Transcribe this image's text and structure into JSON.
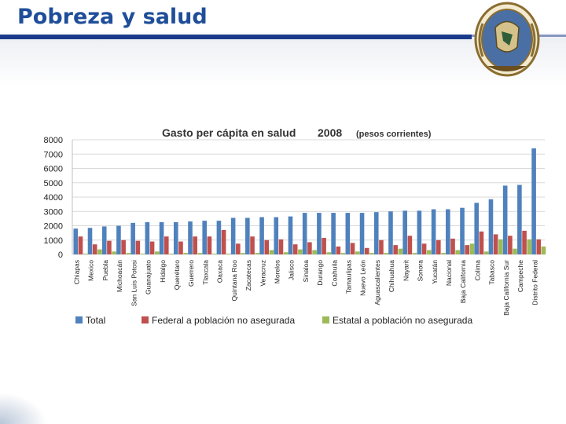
{
  "slide": {
    "title": "Pobreza y salud"
  },
  "colors": {
    "title": "#1f4e99",
    "bar_total": "#4f81bd",
    "bar_federal": "#c0504d",
    "bar_estatal": "#9bbb59",
    "grid": "#d9d9d9"
  },
  "chart_data": {
    "type": "bar",
    "title": "Gasto per cápita en salud",
    "title_year": "2008",
    "subtitle": "(pesos corrientes)",
    "xlabel": "",
    "ylabel": "",
    "ylim": [
      0,
      8000
    ],
    "yticks": [
      0,
      1000,
      2000,
      3000,
      4000,
      5000,
      6000,
      7000,
      8000
    ],
    "grid": true,
    "legend_position": "bottom",
    "categories": [
      "Chiapas",
      "Mexico",
      "Puebla",
      "Michoacán",
      "San Luis Potosi",
      "Guanajuato",
      "Hidalgo",
      "Querétaro",
      "Guerrero",
      "Tlaxcala",
      "Oaxaca",
      "Quintana Roo",
      "Zacatecas",
      "Veracruz",
      "Morelos",
      "Jalisco",
      "Sinaloa",
      "Durango",
      "Coahuila",
      "Tamaulipas",
      "Nuevo León",
      "Aguascalientes",
      "Chihuahua",
      "Nayarit",
      "Sonora",
      "Yucatán",
      "Nacional",
      "Baja California",
      "Colima",
      "Tabasco",
      "Baja California Sur",
      "Campeche",
      "Distrito Federal"
    ],
    "series": [
      {
        "name": "Total",
        "values": [
          1800,
          1850,
          1950,
          2000,
          2200,
          2250,
          2250,
          2250,
          2300,
          2350,
          2350,
          2550,
          2550,
          2600,
          2600,
          2650,
          2900,
          2900,
          2900,
          2900,
          2900,
          2950,
          3000,
          3050,
          3050,
          3150,
          3150,
          3250,
          3600,
          3850,
          4800,
          4850,
          7400
        ]
      },
      {
        "name": "Federal a población no asegurada",
        "values": [
          1250,
          700,
          950,
          1000,
          950,
          900,
          1250,
          900,
          1250,
          1250,
          1700,
          750,
          1250,
          1000,
          1050,
          700,
          850,
          1150,
          550,
          800,
          450,
          1000,
          650,
          1300,
          750,
          1000,
          1100,
          650,
          1600,
          1400,
          1300,
          1650,
          1050
        ]
      },
      {
        "name": "Estatal a población no asegurada",
        "values": [
          50,
          350,
          200,
          100,
          50,
          200,
          50,
          100,
          100,
          50,
          50,
          100,
          100,
          300,
          150,
          350,
          300,
          150,
          100,
          200,
          100,
          100,
          400,
          100,
          300,
          100,
          300,
          750,
          200,
          1050,
          400,
          1050,
          550
        ]
      }
    ]
  }
}
